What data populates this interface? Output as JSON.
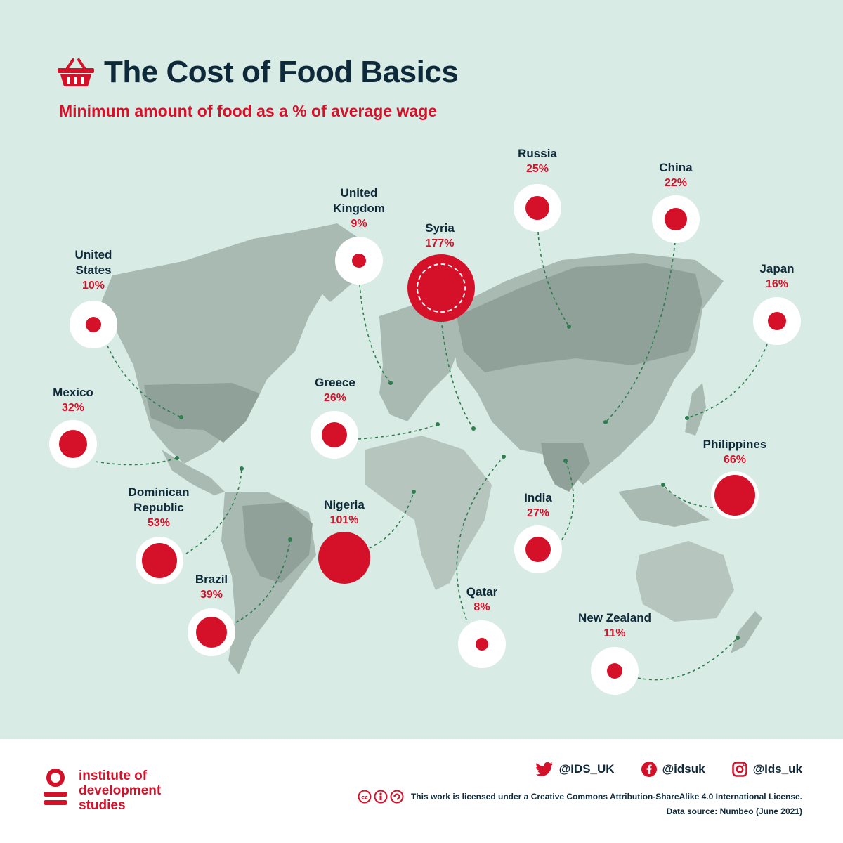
{
  "header": {
    "title": "The Cost of Food Basics",
    "subtitle": "Minimum amount of food as a % of average wage",
    "icon": "basket-icon"
  },
  "colors": {
    "background": "#d8ebe4",
    "accent": "#d5112a",
    "text": "#0e2a3a",
    "land": "#a9bab3",
    "land_dark": "#8fa199"
  },
  "countries": [
    {
      "id": "united-states",
      "name": "United\nStates",
      "value": "10%"
    },
    {
      "id": "mexico",
      "name": "Mexico",
      "value": "32%"
    },
    {
      "id": "dominican-republic",
      "name": "Dominican\nRepublic",
      "value": "53%"
    },
    {
      "id": "brazil",
      "name": "Brazil",
      "value": "39%"
    },
    {
      "id": "united-kingdom",
      "name": "United\nKingdom",
      "value": "9%"
    },
    {
      "id": "syria",
      "name": "Syria",
      "value": "177%"
    },
    {
      "id": "greece",
      "name": "Greece",
      "value": "26%"
    },
    {
      "id": "nigeria",
      "name": "Nigeria",
      "value": "101%"
    },
    {
      "id": "russia",
      "name": "Russia",
      "value": "25%"
    },
    {
      "id": "china",
      "name": "China",
      "value": "22%"
    },
    {
      "id": "japan",
      "name": "Japan",
      "value": "16%"
    },
    {
      "id": "philippines",
      "name": "Philippines",
      "value": "66%"
    },
    {
      "id": "india",
      "name": "India",
      "value": "27%"
    },
    {
      "id": "qatar",
      "name": "Qatar",
      "value": "8%"
    },
    {
      "id": "new-zealand",
      "name": "New Zealand",
      "value": "11%"
    }
  ],
  "footer": {
    "logo_lines": [
      "institute of",
      "development",
      "studies"
    ],
    "twitter": "@IDS_UK",
    "facebook": "@idsuk",
    "instagram": "@Ids_uk",
    "license": "This work is licensed under a Creative Commons Attribution-ShareAlike 4.0 International License.",
    "data_source": "Data source: Numbeo (June 2021)"
  }
}
